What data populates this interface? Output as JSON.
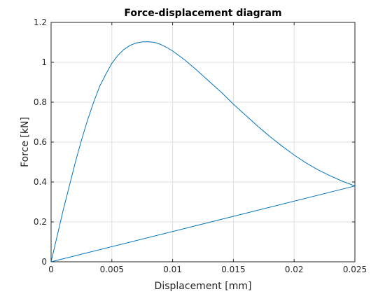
{
  "chart_data": {
    "type": "line",
    "title": "Force-displacement diagram",
    "xlabel": "Displacement [mm]",
    "ylabel": "Force [kN]",
    "xlim": [
      0,
      0.025
    ],
    "ylim": [
      0,
      1.2
    ],
    "grid": true,
    "xticks": [
      0,
      0.005,
      0.01,
      0.015,
      0.02,
      0.025
    ],
    "xtick_labels": [
      "0",
      "0.005",
      "0.01",
      "0.015",
      "0.02",
      "0.025"
    ],
    "yticks": [
      0,
      0.2,
      0.4,
      0.6,
      0.8,
      1.0,
      1.2
    ],
    "ytick_labels": [
      "0",
      "0.2",
      "0.4",
      "0.6",
      "0.8",
      "1",
      "1.2"
    ],
    "colors": {
      "line": "#0072bd",
      "grid": "#dfdfdf",
      "axis": "#262626"
    },
    "series": [
      {
        "x": [
          0,
          0.0005,
          0.001,
          0.0015,
          0.002,
          0.0025,
          0.003,
          0.0035,
          0.004,
          0.0045,
          0.005,
          0.0055,
          0.006,
          0.0065,
          0.007,
          0.0075,
          0.008,
          0.0085,
          0.009,
          0.0095,
          0.01,
          0.011,
          0.012,
          0.013,
          0.014,
          0.015,
          0.016,
          0.017,
          0.018,
          0.019,
          0.02,
          0.021,
          0.022,
          0.023,
          0.024,
          0.025,
          0.0125,
          0
        ],
        "values": [
          0,
          0.13,
          0.26,
          0.38,
          0.5,
          0.61,
          0.71,
          0.8,
          0.88,
          0.94,
          0.995,
          1.035,
          1.065,
          1.085,
          1.097,
          1.102,
          1.103,
          1.1,
          1.09,
          1.075,
          1.057,
          1.012,
          0.96,
          0.905,
          0.85,
          0.79,
          0.735,
          0.68,
          0.628,
          0.58,
          0.535,
          0.495,
          0.46,
          0.43,
          0.403,
          0.38,
          0.19,
          0
        ]
      }
    ]
  }
}
